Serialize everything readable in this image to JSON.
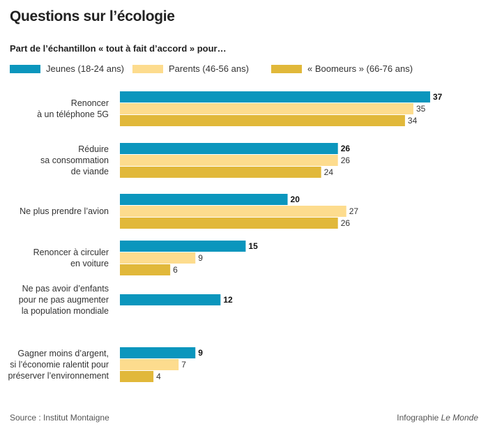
{
  "header": {
    "title": "Questions sur l’écologie",
    "subtitle": "Part de l’échantillon « tout à fait d’accord » pour…"
  },
  "footer": {
    "source": "Source : Institut Montaigne",
    "credit_prefix": "Infographie ",
    "credit_brand": "Le Monde"
  },
  "colors": {
    "jeunes": "#0b96bd",
    "parents": "#fddc8e",
    "boomeurs": "#e1b83a"
  },
  "chart_data": {
    "type": "bar",
    "orientation": "horizontal",
    "title": "Questions sur l’écologie",
    "subtitle": "Part de l’échantillon « tout à fait d’accord » pour…",
    "categories": [
      "Renoncer\nà un téléphone 5G",
      "Réduire\nsa consommation\nde viande",
      "Ne plus prendre l’avion",
      "Renoncer à circuler\nen voiture",
      "Ne pas avoir d’enfants\npour ne pas augmenter\nla population mondiale",
      "Gagner moins d’argent,\nsi l’économie ralentit pour\npréserver l’environnement"
    ],
    "series": [
      {
        "name": "Jeunes (18-24 ans)",
        "color": "#0b96bd",
        "values": [
          37,
          26,
          20,
          15,
          12,
          9
        ]
      },
      {
        "name": "Parents (46-56 ans)",
        "color": "#fddc8e",
        "values": [
          35,
          26,
          27,
          9,
          null,
          7
        ]
      },
      {
        "name": "« Boomeurs » (66-76 ans)",
        "color": "#e1b83a",
        "values": [
          34,
          24,
          26,
          6,
          null,
          4
        ]
      }
    ],
    "xlim": [
      0,
      37
    ],
    "grid": false,
    "legend": "top"
  }
}
